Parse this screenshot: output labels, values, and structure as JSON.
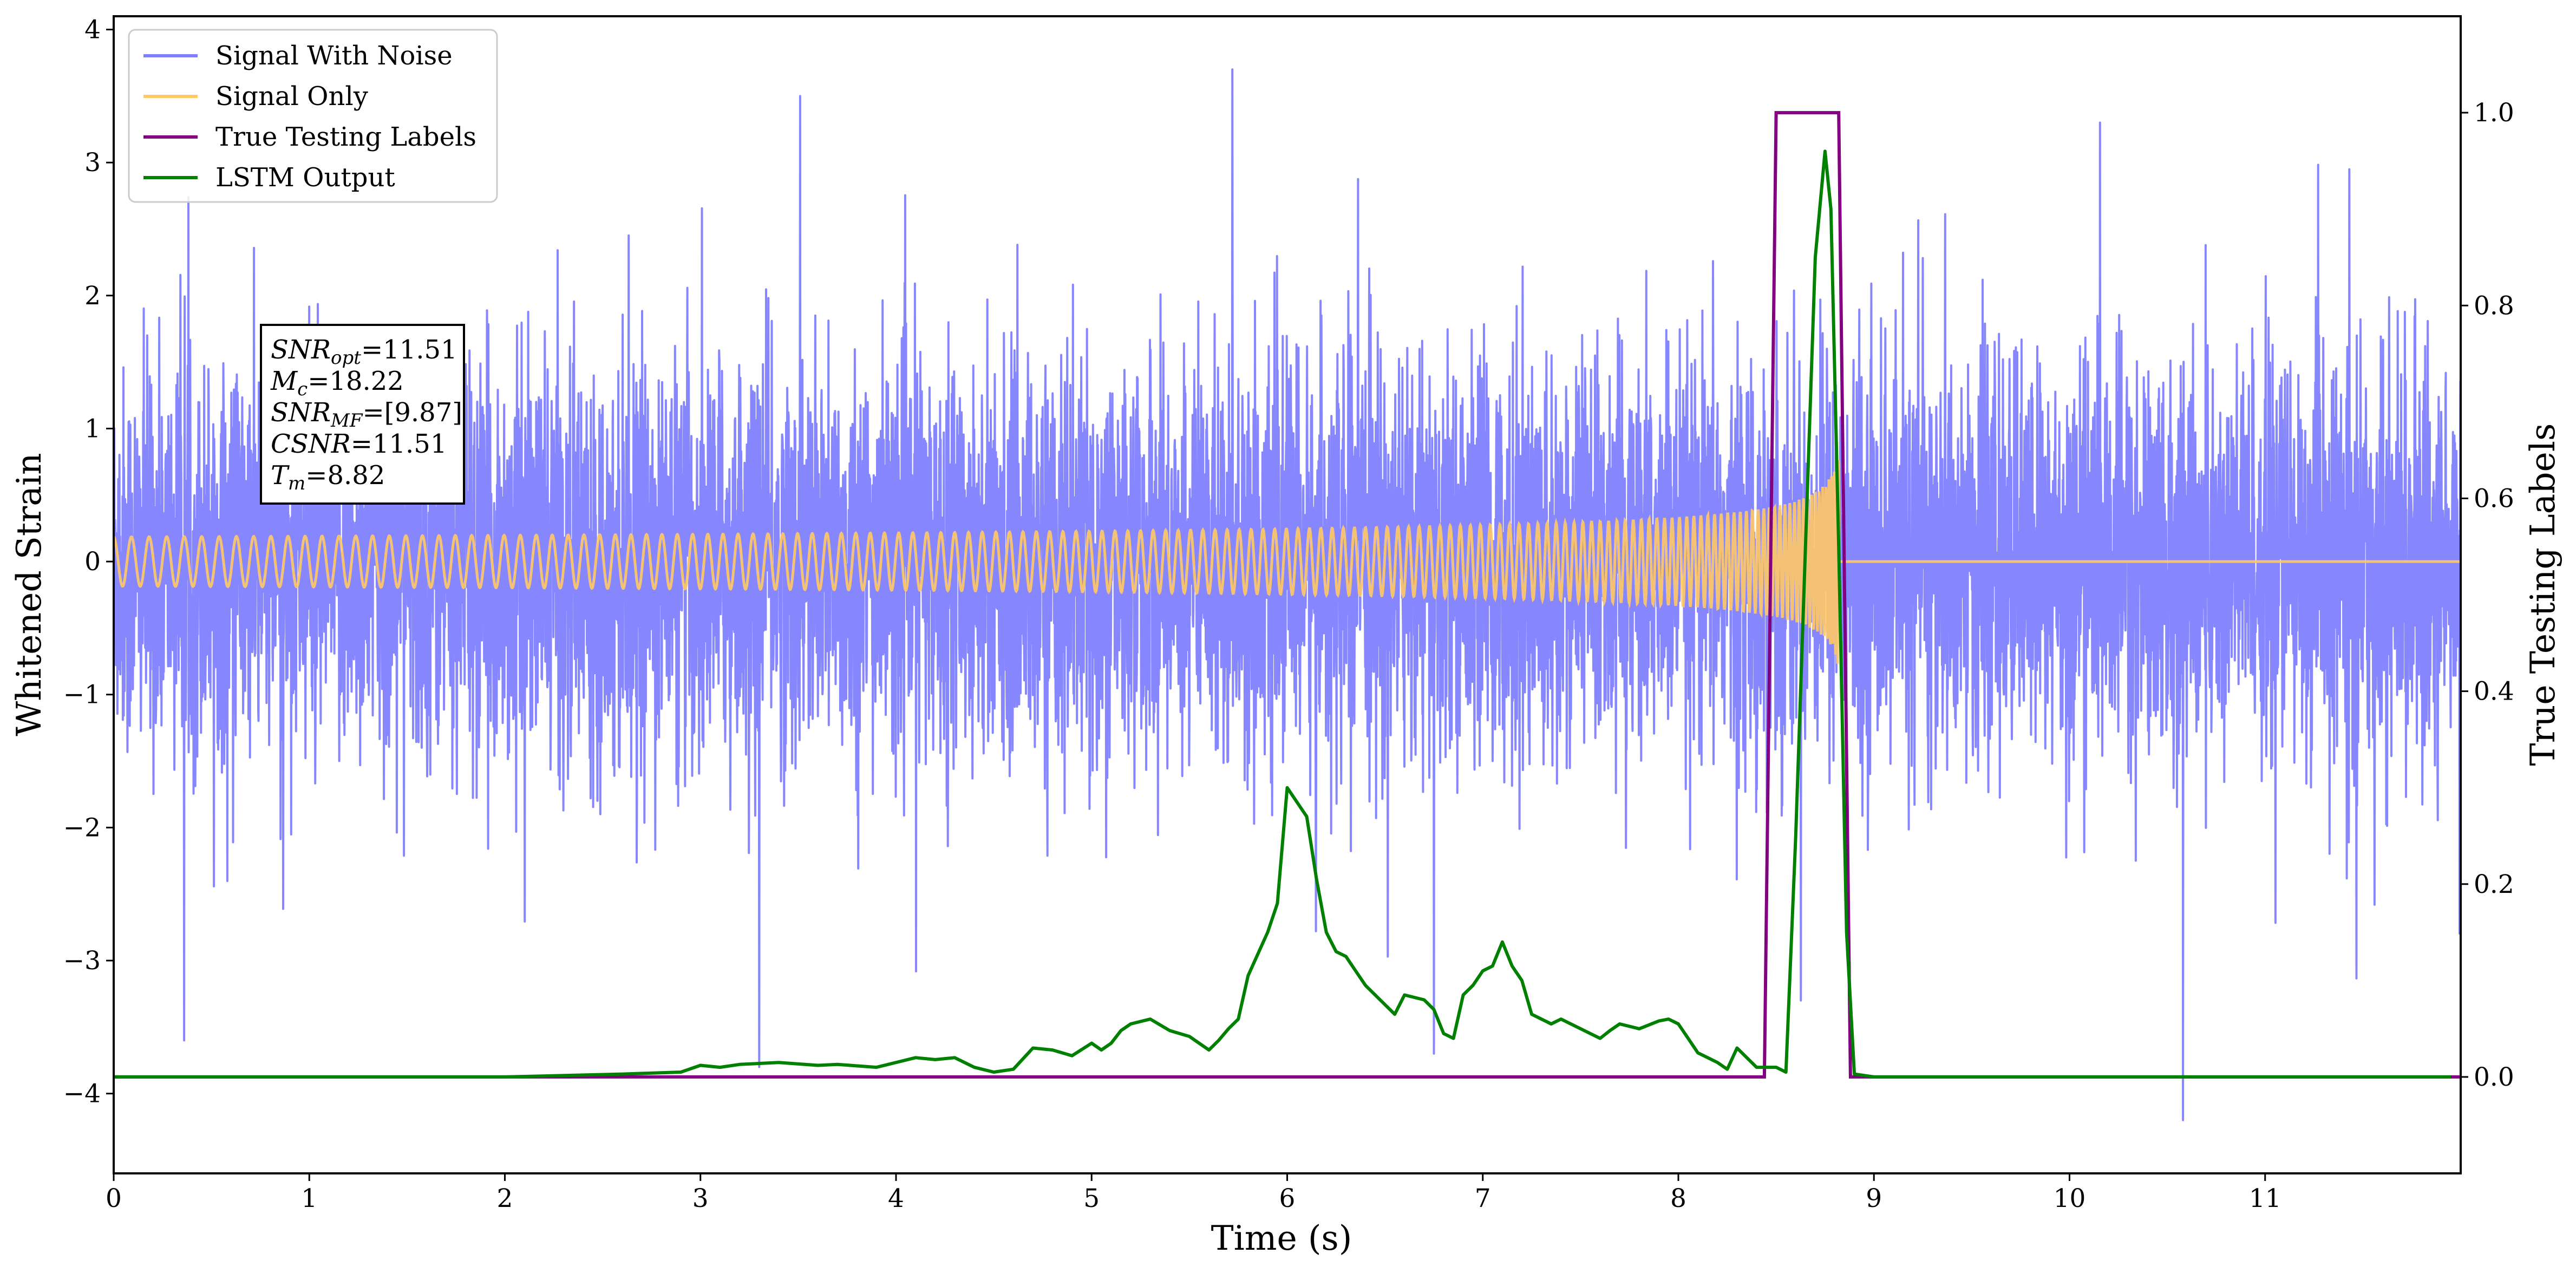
{
  "chart_data": {
    "type": "line",
    "xlabel": "Time (s)",
    "ylabel": "Whitened Strain",
    "y2label": "True Testing Labels",
    "xlim": [
      0,
      12
    ],
    "ylim": [
      -4.6,
      4.1
    ],
    "y2lim": [
      -0.1,
      1.1
    ],
    "xticks": [
      0,
      1,
      2,
      3,
      4,
      5,
      6,
      7,
      8,
      9,
      10,
      11
    ],
    "xtick_labels": [
      "0",
      "1",
      "2",
      "3",
      "4",
      "5",
      "6",
      "7",
      "8",
      "9",
      "10",
      "11"
    ],
    "yticks": [
      -4,
      -3,
      -2,
      -1,
      0,
      1,
      2,
      3,
      4
    ],
    "ytick_labels": [
      "−4",
      "−3",
      "−2",
      "−1",
      "0",
      "1",
      "2",
      "3",
      "4"
    ],
    "y2ticks": [
      0.0,
      0.2,
      0.4,
      0.6,
      0.8,
      1.0
    ],
    "y2tick_labels": [
      "0.0",
      "0.2",
      "0.4",
      "0.6",
      "0.8",
      "1.0"
    ],
    "grid": false,
    "legend_location": "upper-left",
    "series": [
      {
        "name": "Signal With Noise",
        "axis": "left",
        "color": "#7f7fff",
        "kind": "noisy-strain",
        "typical_amplitude": 1.5,
        "extremes": [
          {
            "x": 5.72,
            "y": 3.7
          },
          {
            "x": 3.51,
            "y": 3.5
          },
          {
            "x": 10.58,
            "y": -4.2
          },
          {
            "x": 0.36,
            "y": -3.6
          },
          {
            "x": 3.3,
            "y": -3.8
          },
          {
            "x": 6.75,
            "y": -3.7
          }
        ]
      },
      {
        "name": "Signal Only",
        "axis": "left",
        "color": "#ffc966",
        "kind": "chirp",
        "merger_time": 8.82,
        "peak_amplitude": 0.85
      },
      {
        "name": "True Testing Labels",
        "axis": "right",
        "color": "#800080",
        "x": [
          0,
          8.44,
          8.5,
          8.82,
          8.88,
          12
        ],
        "y": [
          0,
          0,
          1,
          1,
          0,
          0
        ]
      },
      {
        "name": "LSTM Output",
        "axis": "right",
        "color": "#008000",
        "x": [
          0.0,
          0.5,
          1.0,
          2.0,
          2.6,
          2.9,
          3.0,
          3.1,
          3.2,
          3.4,
          3.6,
          3.7,
          3.9,
          4.1,
          4.2,
          4.3,
          4.4,
          4.5,
          4.6,
          4.7,
          4.8,
          4.9,
          5.0,
          5.05,
          5.1,
          5.15,
          5.2,
          5.3,
          5.4,
          5.5,
          5.55,
          5.6,
          5.65,
          5.7,
          5.75,
          5.8,
          5.9,
          5.95,
          6.0,
          6.1,
          6.15,
          6.2,
          6.25,
          6.3,
          6.35,
          6.4,
          6.5,
          6.55,
          6.6,
          6.7,
          6.75,
          6.8,
          6.85,
          6.9,
          6.95,
          7.0,
          7.05,
          7.1,
          7.15,
          7.2,
          7.25,
          7.35,
          7.4,
          7.5,
          7.55,
          7.6,
          7.65,
          7.7,
          7.8,
          7.9,
          7.95,
          8.0,
          8.05,
          8.1,
          8.15,
          8.2,
          8.25,
          8.3,
          8.4,
          8.45,
          8.5,
          8.55,
          8.6,
          8.65,
          8.7,
          8.75,
          8.78,
          8.82,
          8.86,
          8.9,
          9.0,
          12.0
        ],
        "y": [
          0.0,
          0.0,
          0.0,
          0.0,
          0.003,
          0.005,
          0.012,
          0.01,
          0.013,
          0.015,
          0.012,
          0.013,
          0.01,
          0.02,
          0.018,
          0.02,
          0.01,
          0.005,
          0.008,
          0.03,
          0.028,
          0.022,
          0.035,
          0.028,
          0.035,
          0.048,
          0.055,
          0.06,
          0.048,
          0.042,
          0.035,
          0.028,
          0.038,
          0.05,
          0.06,
          0.105,
          0.15,
          0.18,
          0.3,
          0.27,
          0.205,
          0.15,
          0.13,
          0.125,
          0.11,
          0.095,
          0.075,
          0.065,
          0.085,
          0.08,
          0.07,
          0.045,
          0.04,
          0.085,
          0.095,
          0.11,
          0.115,
          0.14,
          0.115,
          0.1,
          0.065,
          0.055,
          0.06,
          0.05,
          0.045,
          0.04,
          0.048,
          0.055,
          0.05,
          0.058,
          0.06,
          0.055,
          0.04,
          0.025,
          0.02,
          0.015,
          0.008,
          0.03,
          0.01,
          0.01,
          0.01,
          0.005,
          0.25,
          0.55,
          0.85,
          0.96,
          0.9,
          0.55,
          0.15,
          0.003,
          0.0,
          0.0
        ]
      }
    ],
    "annotation": [
      {
        "symbol": "SNR",
        "subscript": "opt",
        "value": "=11.51"
      },
      {
        "symbol": "M",
        "subscript": "c",
        "value": "=18.22"
      },
      {
        "symbol": "SNR",
        "subscript": "MF",
        "value": "=[9.87]"
      },
      {
        "symbol": "CSNR",
        "subscript": "",
        "value": "=11.51"
      },
      {
        "symbol": "T",
        "subscript": "m",
        "value": "=8.82"
      }
    ]
  }
}
